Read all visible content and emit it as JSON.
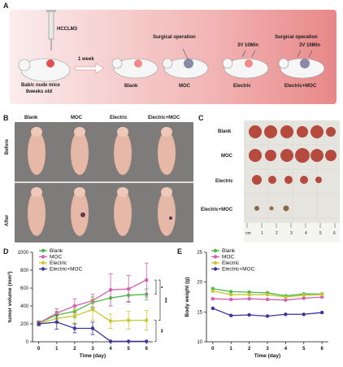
{
  "panelA": {
    "letter": "A",
    "cell_line": "HCCLM3",
    "mouse_caption_1": "Bab/c nude mice",
    "mouse_caption_2": "8weeks old",
    "interval": "1 week",
    "surgical_1": "Surgical operation",
    "surgical_2": "Surgical operation",
    "electric_param_1": "3V 10Min",
    "electric_param_2": "3V 10Min",
    "groups": [
      "Blank",
      "MOC",
      "Electric",
      "Electric+MOC"
    ]
  },
  "panelB": {
    "letter": "B",
    "columns": [
      "Blank",
      "MOC",
      "Electric",
      "Electric+MOC"
    ],
    "rows": [
      "Before",
      "After"
    ]
  },
  "panelC": {
    "letter": "C",
    "rows": [
      "Blank",
      "MOC",
      "Electric",
      "Electric+MOC"
    ],
    "ruler_unit": "cm",
    "ruler_marks": [
      "1",
      "2",
      "3",
      "4",
      "5",
      "6"
    ]
  },
  "colors": {
    "blank": "#4cb848",
    "moc": "#d45fb0",
    "electric": "#c8c830",
    "electric_moc": "#3a36a0",
    "banner": "#e88888"
  },
  "chart_data": [
    {
      "panel": "D",
      "type": "line",
      "xlabel": "Time (day)",
      "ylabel": "tumor volume (mm³)",
      "x": [
        0,
        1,
        2,
        3,
        4,
        5,
        6
      ],
      "xlim": [
        0,
        6
      ],
      "ylim": [
        0,
        1000
      ],
      "yticks": [
        0,
        200,
        400,
        600,
        800,
        1000
      ],
      "significance": [
        "*",
        "***",
        "**"
      ],
      "legend": "top-left",
      "series": [
        {
          "name": "Blank",
          "color": "#4cb848",
          "values": [
            210,
            300,
            340,
            440,
            490,
            520,
            530
          ],
          "err": [
            20,
            40,
            70,
            60,
            90,
            70,
            60
          ]
        },
        {
          "name": "MOC",
          "color": "#d45fb0",
          "values": [
            210,
            320,
            400,
            460,
            580,
            590,
            690
          ],
          "err": [
            25,
            50,
            80,
            70,
            180,
            150,
            190
          ]
        },
        {
          "name": "Electric",
          "color": "#c8c830",
          "values": [
            205,
            260,
            290,
            360,
            230,
            240,
            240
          ],
          "err": [
            20,
            50,
            80,
            120,
            80,
            100,
            110
          ]
        },
        {
          "name": "Electric+MOC",
          "color": "#3a36a0",
          "values": [
            200,
            220,
            150,
            150,
            5,
            5,
            5
          ],
          "err": [
            20,
            80,
            50,
            70,
            0,
            0,
            0
          ]
        }
      ]
    },
    {
      "panel": "E",
      "type": "line",
      "xlabel": "Time (day)",
      "ylabel": "Body weight (g)",
      "x": [
        0,
        1,
        2,
        3,
        4,
        5,
        6
      ],
      "xlim": [
        0,
        6
      ],
      "ylim": [
        10,
        25
      ],
      "yticks": [
        10,
        15,
        20,
        25
      ],
      "legend": "top-left",
      "series": [
        {
          "name": "Blank",
          "color": "#4cb848",
          "values": [
            18.9,
            18.4,
            18.3,
            18.2,
            17.7,
            18.0,
            18.0
          ]
        },
        {
          "name": "MOC",
          "color": "#d45fb0",
          "values": [
            17.2,
            17.1,
            17.2,
            17.1,
            17.0,
            17.3,
            17.5
          ]
        },
        {
          "name": "Electric",
          "color": "#c8c830",
          "values": [
            18.5,
            17.9,
            17.9,
            17.9,
            17.5,
            17.8,
            17.9
          ]
        },
        {
          "name": "Electric+MOC",
          "color": "#3a36a0",
          "values": [
            15.6,
            14.4,
            14.5,
            14.3,
            14.6,
            14.6,
            14.9
          ]
        }
      ]
    }
  ]
}
